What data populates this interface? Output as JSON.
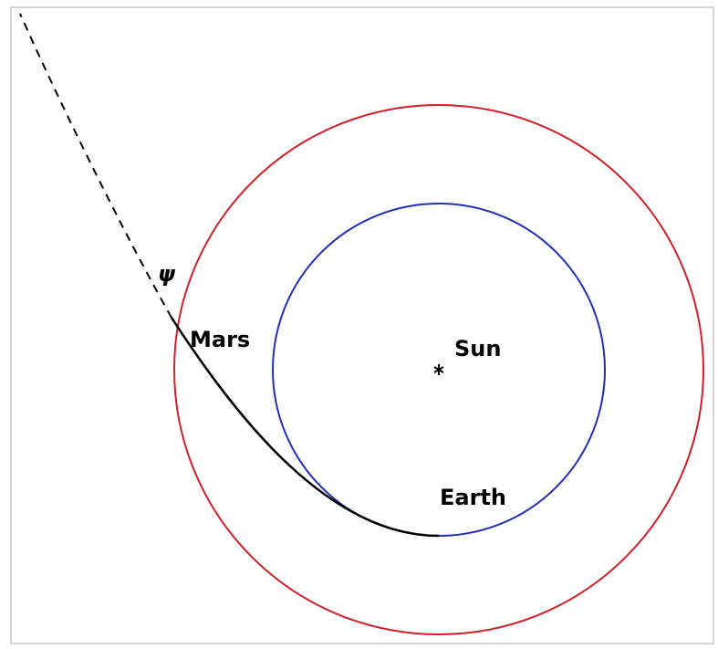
{
  "labels": {
    "angle": "ψ",
    "mars": "Mars",
    "sun": "Sun",
    "earth": "Earth"
  }
}
